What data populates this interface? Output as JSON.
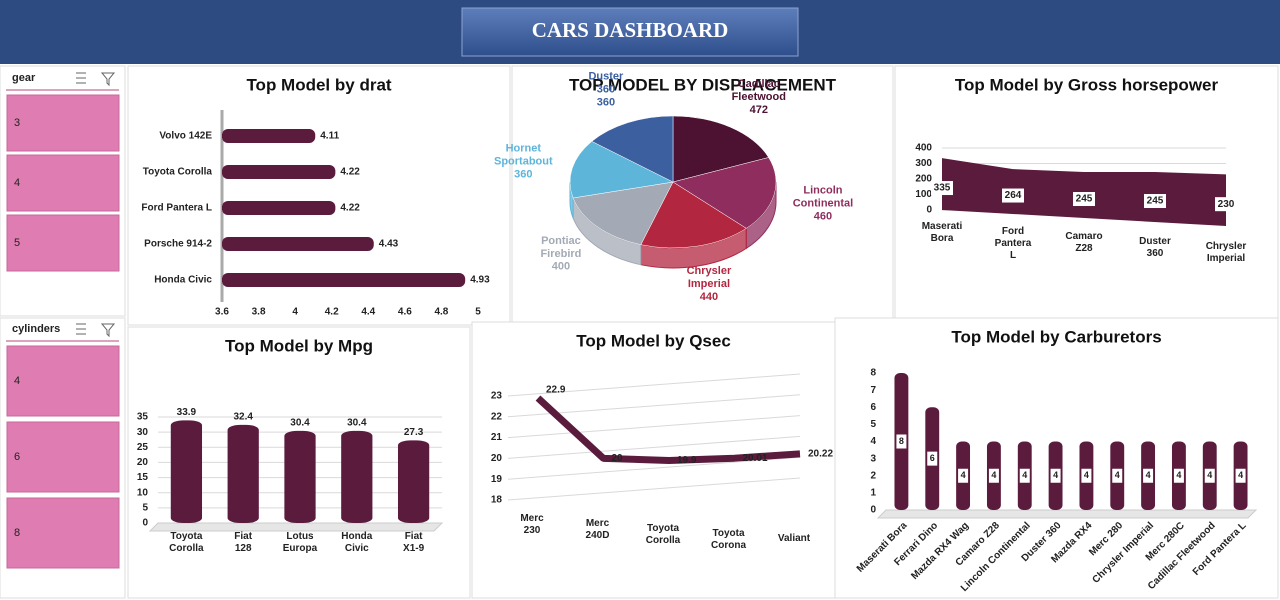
{
  "header": {
    "title": "CARS DASHBOARD"
  },
  "slicers": [
    {
      "title": "gear",
      "items": [
        3,
        4,
        5
      ]
    },
    {
      "title": "cylinders",
      "items": [
        4,
        6,
        8
      ]
    }
  ],
  "chart_data": [
    {
      "type": "bar",
      "orientation": "horizontal",
      "title": "Top Model by drat",
      "categories": [
        "Volvo 142E",
        "Toyota Corolla",
        "Ford Pantera L",
        "Porsche 914-2",
        "Honda Civic"
      ],
      "values": [
        4.11,
        4.22,
        4.22,
        4.43,
        4.93
      ],
      "color": "#5b1b3d",
      "xlim": [
        3.6,
        5
      ],
      "xticks": [
        3.6,
        3.8,
        4,
        4.2,
        4.4,
        4.6,
        4.8,
        5
      ]
    },
    {
      "type": "pie",
      "title": "TOP MODEL BY DISPLACEMENT",
      "categories": [
        "Cadillac Fleetwood",
        "Lincoln Continental",
        "Chrysler Imperial",
        "Pontiac Firebird",
        "Hornet Sportabout",
        "Duster 360"
      ],
      "values": [
        472,
        460,
        440,
        400,
        360,
        360
      ],
      "colors": [
        "#4d1232",
        "#8f2e5e",
        "#b3263f",
        "#a3aab5",
        "#5db5da",
        "#3c5f9f"
      ]
    },
    {
      "type": "area",
      "title": "Top Model by Gross horsepower",
      "categories": [
        "Maserati Bora",
        "Ford Pantera L",
        "Camaro Z28",
        "Duster 360",
        "Chrysler Imperial"
      ],
      "values": [
        335,
        264,
        245,
        245,
        230
      ],
      "color": "#5b1b3d",
      "ylim": [
        0,
        400
      ],
      "yticks": [
        0,
        100,
        200,
        300,
        400
      ],
      "grid": true
    },
    {
      "type": "bar",
      "orientation": "vertical",
      "title": "Top Model by Mpg",
      "categories": [
        "Toyota Corolla",
        "Fiat 128",
        "Lotus Europa",
        "Honda Civic",
        "Fiat X1-9"
      ],
      "values": [
        33.9,
        32.4,
        30.4,
        30.4,
        27.3
      ],
      "color": "#5b1b3d",
      "ylim": [
        0,
        35
      ],
      "yticks": [
        0,
        5,
        10,
        15,
        20,
        25,
        30,
        35
      ],
      "grid": true
    },
    {
      "type": "line",
      "title": "Top Model by Qsec",
      "categories": [
        "Merc 230",
        "Merc 240D",
        "Toyota Corolla",
        "Toyota Corona",
        "Valiant"
      ],
      "values": [
        22.9,
        20,
        19.9,
        20.01,
        20.22
      ],
      "color": "#5b1b3d",
      "ylim": [
        18,
        23
      ],
      "yticks": [
        18,
        19,
        20,
        21,
        22,
        23
      ],
      "grid": true
    },
    {
      "type": "bar",
      "orientation": "vertical",
      "title": "Top Model by Carburetors",
      "categories": [
        "Maserati Bora",
        "Ferrari Dino",
        "Mazda RX4 Wag",
        "Camaro Z28",
        "Lincoln Continental",
        "Duster 360",
        "Mazda RX4",
        "Merc 280",
        "Chrysler Imperial",
        "Merc 280C",
        "Cadillac Fleetwood",
        "Ford Pantera L"
      ],
      "values": [
        8,
        6,
        4,
        4,
        4,
        4,
        4,
        4,
        4,
        4,
        4,
        4
      ],
      "color": "#5b1b3d",
      "ylim": [
        0,
        8
      ],
      "yticks": [
        0,
        1,
        2,
        3,
        4,
        5,
        6,
        7,
        8
      ],
      "grid": false
    }
  ]
}
